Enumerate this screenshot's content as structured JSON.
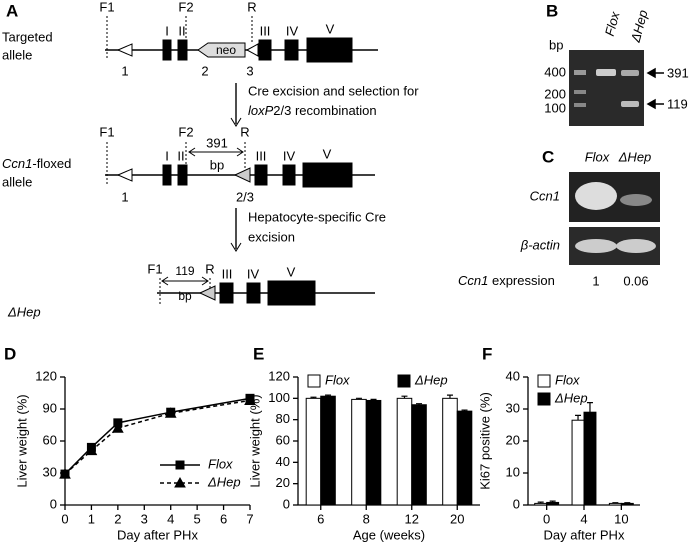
{
  "figure": {
    "A": {
      "label": "A",
      "targeted": [
        "Targeted",
        "allele"
      ],
      "f1": "F1",
      "f2": "F2",
      "r": "R",
      "exons": [
        "I",
        "II",
        "III",
        "IV",
        "V"
      ],
      "neo": "neo",
      "sites": [
        "1",
        "2",
        "3"
      ],
      "step1": [
        "Cre excision and selection for",
        "loxP",
        "2/3 recombination"
      ],
      "floxed": [
        "Ccn1",
        "-floxed",
        "allele"
      ],
      "size1": "391",
      "bp": "bp",
      "site23": "2/3",
      "step2": [
        "Hepatocyte-specific Cre",
        "excision"
      ],
      "size2": "119",
      "hep": "ΔHep"
    },
    "B": {
      "label": "B",
      "lanes": [
        "Flox",
        "ΔHep"
      ],
      "unit": "bp",
      "ladder": [
        "400",
        "200",
        "100"
      ],
      "products": [
        "391",
        "119"
      ]
    },
    "C": {
      "label": "C",
      "lanes": [
        "Flox",
        "ΔHep"
      ],
      "genes": [
        "Ccn1",
        "β-actin"
      ],
      "expression_label": [
        "Ccn1",
        " expression"
      ],
      "expression": [
        "1",
        "0.06"
      ]
    }
  },
  "chart_data": [
    {
      "type": "line",
      "panel": "D",
      "x_label": "Day after PHx",
      "y_label": "Liver weight (%)",
      "x": [
        0,
        1,
        2,
        4,
        7
      ],
      "series": [
        {
          "name": "Flox",
          "color": "#000000",
          "marker": "square",
          "line_style": "solid",
          "values": [
            29,
            54,
            77,
            87,
            100
          ]
        },
        {
          "name": "ΔHep",
          "color": "#000000",
          "marker": "triangle",
          "line_style": "dashed",
          "values": [
            29,
            51,
            72,
            86,
            98
          ]
        }
      ],
      "xlim": [
        0,
        7
      ],
      "xticks": [
        0,
        1,
        2,
        3,
        4,
        5,
        6,
        7
      ],
      "ylim": [
        0,
        120
      ],
      "yticks": [
        0,
        30,
        60,
        90,
        120
      ],
      "legend": "lower right"
    },
    {
      "type": "bar",
      "panel": "E",
      "x_label": "Age (weeks)",
      "y_label": "Liver weight (%)",
      "categories": [
        "6",
        "8",
        "12",
        "20"
      ],
      "series": [
        {
          "name": "Flox",
          "color": "#ffffff",
          "values": [
            100,
            99,
            100,
            100
          ],
          "errors": [
            1,
            1,
            2,
            3
          ]
        },
        {
          "name": "ΔHep",
          "color": "#000000",
          "values": [
            102,
            98,
            94,
            88
          ],
          "errors": [
            1,
            1,
            1,
            1
          ]
        }
      ],
      "ylim": [
        0,
        120
      ],
      "yticks": [
        0,
        20,
        40,
        60,
        80,
        100,
        120
      ],
      "legend": "upper center"
    },
    {
      "type": "bar",
      "panel": "F",
      "x_label": "Day after PHx",
      "y_label": "Ki67 positive (%)",
      "categories": [
        "0",
        "4",
        "10"
      ],
      "series": [
        {
          "name": "Flox",
          "color": "#ffffff",
          "values": [
            0.5,
            26.5,
            0.5
          ],
          "errors": [
            0.4,
            1.5,
            0.2
          ]
        },
        {
          "name": "ΔHep",
          "color": "#000000",
          "values": [
            0.8,
            29,
            0.5
          ],
          "errors": [
            0.4,
            3,
            0.2
          ]
        }
      ],
      "ylim": [
        0,
        40
      ],
      "yticks": [
        0,
        10,
        20,
        30,
        40
      ],
      "legend": "upper left"
    }
  ]
}
